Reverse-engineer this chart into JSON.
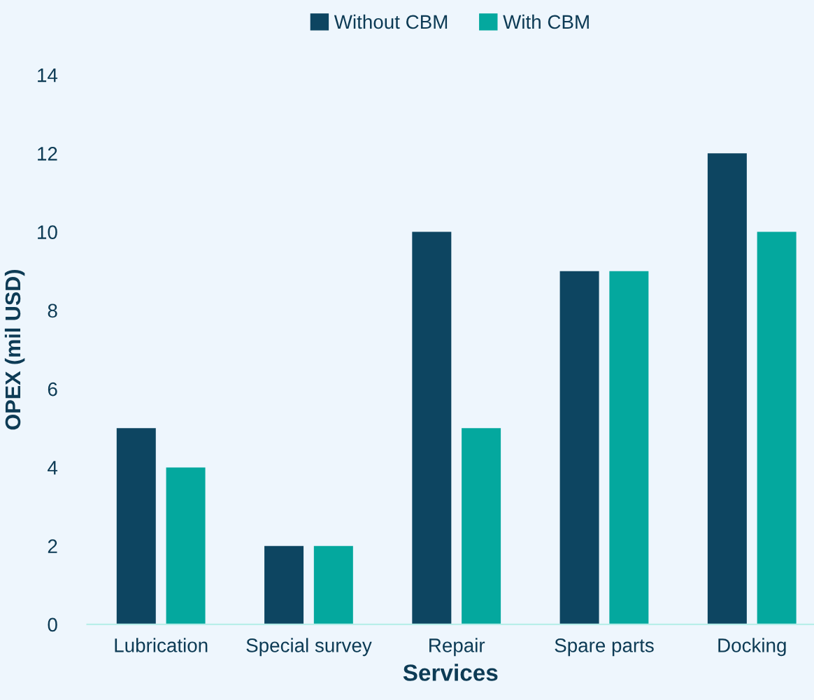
{
  "chart_data": {
    "type": "bar",
    "xlabel": "Services",
    "ylabel": "OPEX (mil USD)",
    "categories": [
      "Lubrication",
      "Special survey",
      "Repair",
      "Spare parts",
      "Docking"
    ],
    "series": [
      {
        "name": "Without CBM",
        "color": "#0d4561",
        "values": [
          5,
          2,
          10,
          9,
          12
        ]
      },
      {
        "name": "With CBM",
        "color": "#04a89e",
        "values": [
          4,
          2,
          5,
          9,
          10
        ]
      }
    ],
    "ylim": [
      0,
      14
    ],
    "yticks": [
      0,
      2,
      4,
      6,
      8,
      10,
      12,
      14
    ],
    "grid": false,
    "legend": "top"
  }
}
